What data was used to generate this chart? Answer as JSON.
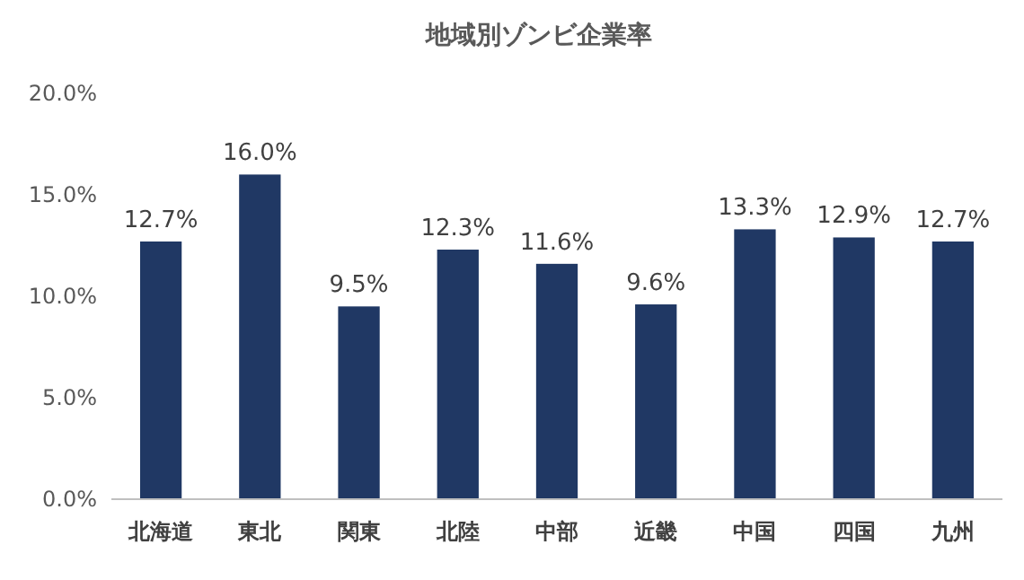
{
  "chart_data": {
    "type": "bar",
    "title": "地域別ゾンビ企業率",
    "categories": [
      "北海道",
      "東北",
      "関東",
      "北陸",
      "中部",
      "近畿",
      "中国",
      "四国",
      "九州"
    ],
    "values": [
      12.7,
      16.0,
      9.5,
      12.3,
      11.6,
      9.6,
      13.3,
      12.9,
      12.7
    ],
    "value_labels": [
      "12.7%",
      "16.0%",
      "9.5%",
      "12.3%",
      "11.6%",
      "9.6%",
      "13.3%",
      "12.9%",
      "12.7%"
    ],
    "color": "#203864",
    "ylim": [
      0,
      20
    ],
    "yticks": [
      {
        "value": 0,
        "label": "0.0%"
      },
      {
        "value": 5,
        "label": "5.0%"
      },
      {
        "value": 10,
        "label": "10.0%"
      },
      {
        "value": 15,
        "label": "15.0%"
      },
      {
        "value": 20,
        "label": "20.0%"
      }
    ],
    "grid": false
  }
}
